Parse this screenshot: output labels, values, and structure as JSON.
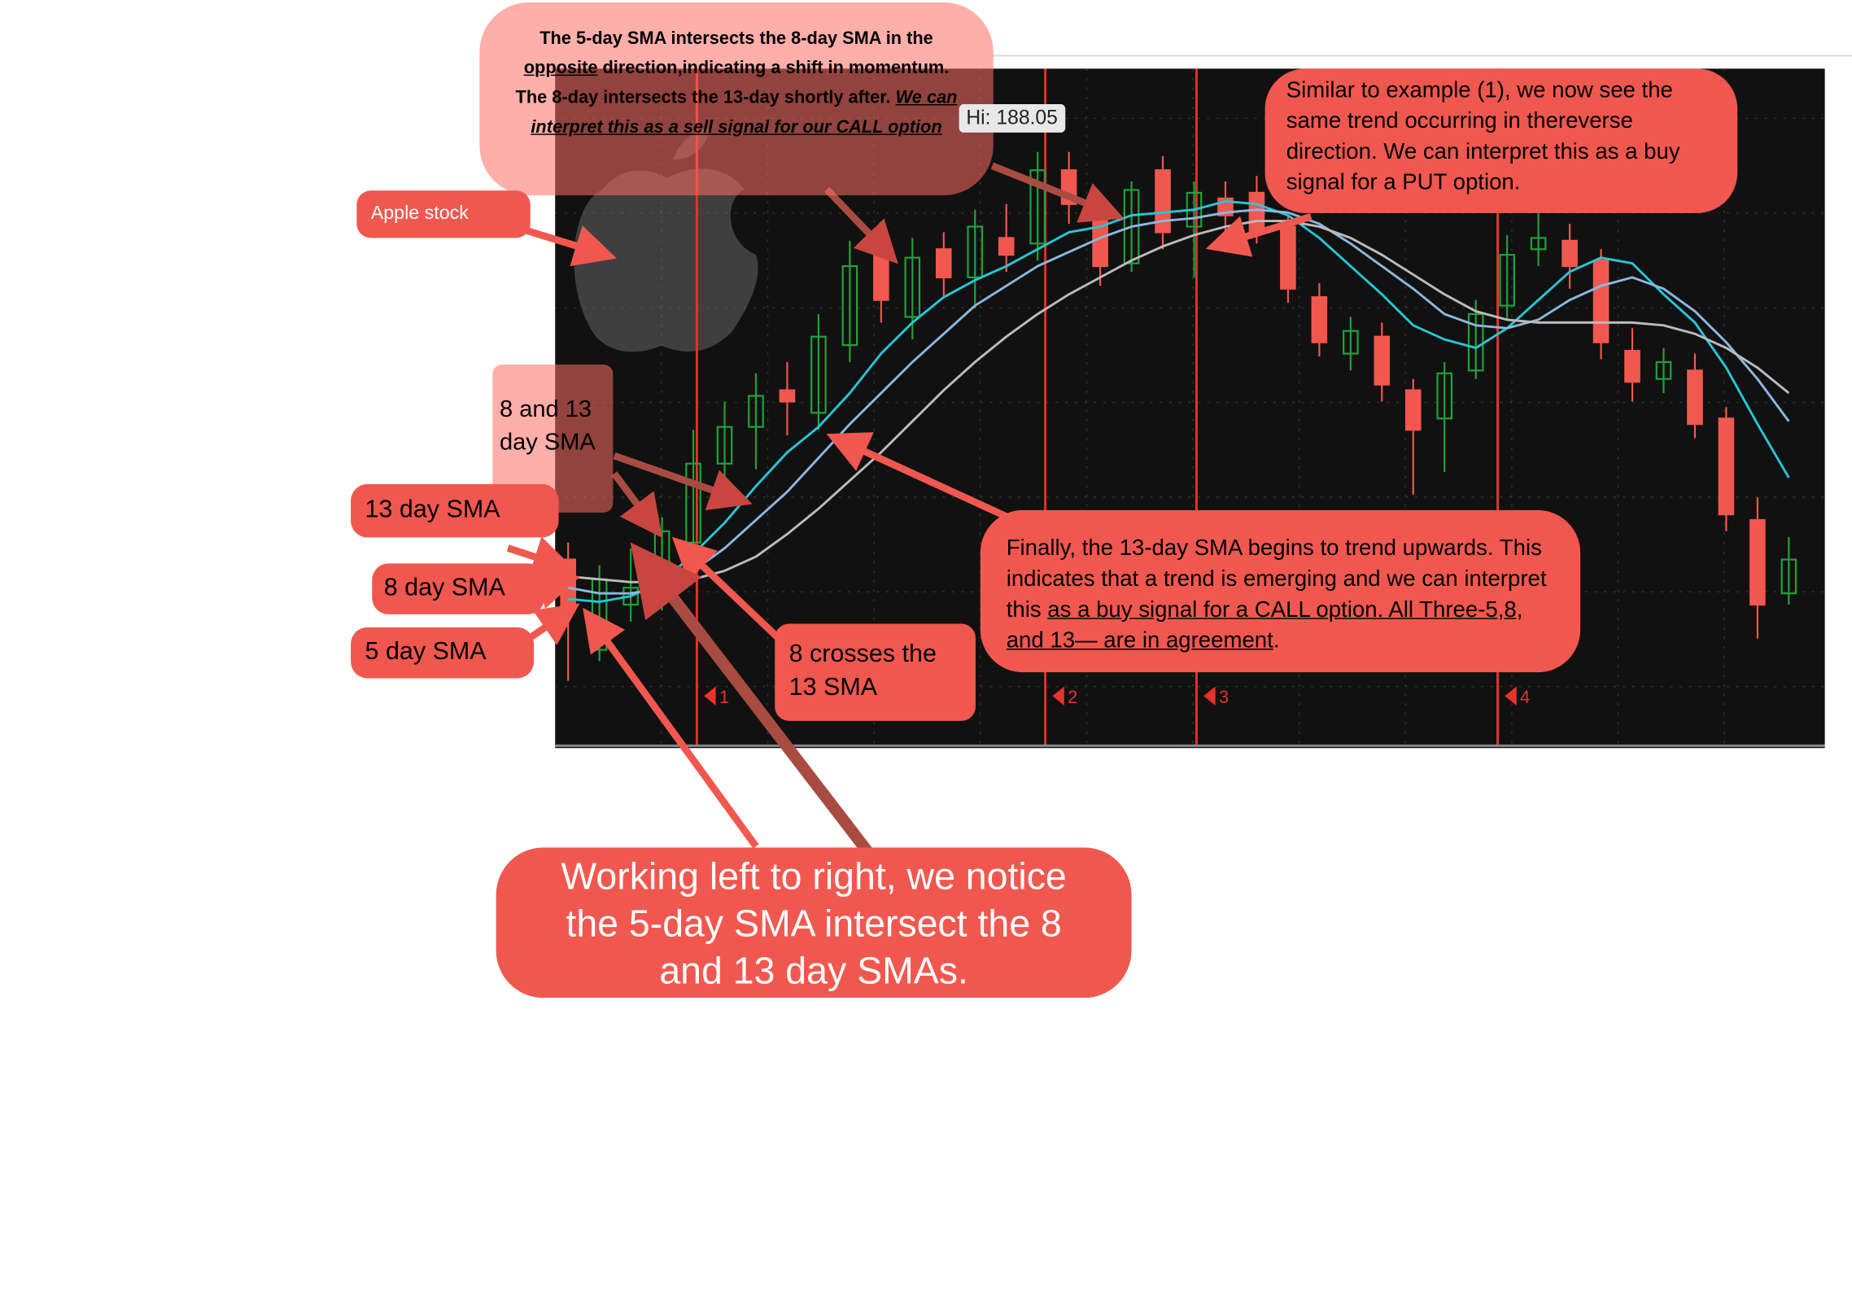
{
  "chart_data": {
    "type": "candlestick",
    "ylim": [
      167,
      191
    ],
    "open": [
      173.6,
      170.4,
      172.0,
      172.6,
      174.2,
      177.0,
      178.3,
      179.6,
      178.8,
      181.2,
      184.5,
      182.2,
      184.6,
      183.6,
      185.0,
      184.8,
      187.4,
      185.8,
      184.1,
      187.4,
      185.4,
      186.4,
      186.6,
      185.4,
      182.9,
      180.9,
      181.5,
      179.6,
      178.6,
      180.3,
      182.6,
      184.6,
      184.9,
      184.2,
      181.0,
      180.0,
      180.3,
      178.6,
      175.0,
      172.4
    ],
    "high": [
      174.2,
      173.4,
      174.0,
      175.1,
      178.2,
      179.2,
      180.2,
      180.6,
      182.3,
      184.9,
      185.1,
      185.0,
      185.2,
      186.0,
      186.2,
      188.05,
      188.05,
      186.4,
      187.0,
      187.9,
      187.0,
      187.0,
      187.2,
      185.8,
      183.4,
      182.2,
      182.0,
      180.0,
      180.6,
      182.8,
      185.1,
      185.9,
      185.5,
      184.6,
      181.8,
      181.1,
      180.9,
      179.0,
      175.8,
      174.4
    ],
    "low": [
      169.3,
      170.0,
      171.4,
      171.8,
      173.6,
      176.2,
      176.8,
      178.0,
      178.2,
      180.6,
      182.0,
      181.4,
      182.9,
      182.5,
      183.8,
      184.2,
      185.5,
      183.3,
      183.8,
      184.6,
      183.6,
      185.2,
      184.8,
      182.7,
      180.8,
      180.3,
      179.2,
      175.9,
      176.7,
      180.0,
      182.1,
      184.0,
      183.2,
      180.7,
      179.2,
      179.5,
      177.9,
      174.6,
      170.8,
      172.0
    ],
    "close": [
      171.9,
      172.9,
      172.6,
      174.6,
      177.0,
      178.3,
      179.4,
      179.2,
      181.5,
      184.0,
      182.8,
      184.3,
      183.6,
      185.4,
      184.4,
      187.4,
      186.2,
      184.0,
      186.7,
      185.2,
      186.6,
      185.8,
      185.2,
      183.2,
      181.3,
      181.7,
      179.8,
      178.2,
      180.2,
      182.3,
      184.4,
      185.0,
      184.0,
      181.3,
      179.9,
      180.6,
      178.4,
      175.2,
      172.0,
      173.6
    ],
    "up_color": "#1fa33a",
    "down_color": "#f0584f",
    "series": [
      {
        "color": "#26c6d6",
        "values": [
          172.2,
          172.1,
          172.3,
          172.8,
          173.8,
          174.9,
          176.2,
          177.4,
          178.3,
          179.5,
          180.9,
          182.0,
          182.9,
          183.5,
          184.0,
          184.6,
          185.2,
          185.4,
          185.8,
          185.9,
          186.0,
          186.3,
          186.2,
          185.8,
          185.0,
          184.0,
          183.0,
          181.9,
          181.4,
          181.1,
          181.8,
          182.8,
          183.8,
          184.3,
          184.1,
          183.0,
          182.0,
          180.4,
          178.4,
          176.5
        ]
      },
      {
        "color": "#8ab8e0",
        "values": [
          172.6,
          172.4,
          172.4,
          172.6,
          173.2,
          174.0,
          175.0,
          176.0,
          177.2,
          178.4,
          179.5,
          180.6,
          181.6,
          182.6,
          183.3,
          184.0,
          184.5,
          185.0,
          185.4,
          185.6,
          185.7,
          185.9,
          186.0,
          185.9,
          185.5,
          184.8,
          184.0,
          183.2,
          182.3,
          181.9,
          181.8,
          182.1,
          182.8,
          183.3,
          183.6,
          183.2,
          182.4,
          181.3,
          180.0,
          178.5
        ]
      },
      {
        "color": "#bbbbbb",
        "values": [
          173.0,
          172.9,
          172.8,
          172.8,
          172.9,
          173.2,
          173.7,
          174.5,
          175.4,
          176.4,
          177.4,
          178.5,
          179.6,
          180.6,
          181.5,
          182.3,
          183.0,
          183.6,
          184.2,
          184.7,
          185.1,
          185.4,
          185.6,
          185.6,
          185.4,
          185.0,
          184.4,
          183.7,
          183.0,
          182.4,
          182.1,
          182.0,
          182.0,
          182.0,
          182.0,
          181.9,
          181.6,
          181.1,
          180.4,
          179.5
        ]
      }
    ],
    "signals": [
      "1",
      "2",
      "3",
      "4"
    ],
    "signal_color": "#e8322a"
  },
  "annotations": {
    "sell_note": [
      "The 5-day SMA intersects the 8-day SMA in the ",
      "opposite",
      " direction,indicating a shift in momentum. The 8-day intersects the 13-day shortly after. ",
      "We can interpret this as a sell signal for our CALL option"
    ],
    "hi_label": "Hi: 188.05",
    "apple": "Apple stock",
    "sma_8_13": "8 and 13 day SMA",
    "sma_13": "13 day SMA",
    "sma_8": "8 day SMA",
    "sma_5": "5 day SMA",
    "crosses": "8 crosses the 13 SMA",
    "buy_note": [
      "Finally, the 13-day SMA begins to trend upwards. This indicates that a trend is emerging and we can interpret this ",
      "as a buy signal for a CALL option.  All Three-5,8, and 13— are in agreement",
      "."
    ],
    "put_note": "Similar to example (1), we now see the same trend occurring in thereverse direction. We can interpret this as a buy signal for a PUT option.",
    "summary": "Working left to right, we notice the 5-day SMA intersect the 8 and 13 day SMAs."
  }
}
